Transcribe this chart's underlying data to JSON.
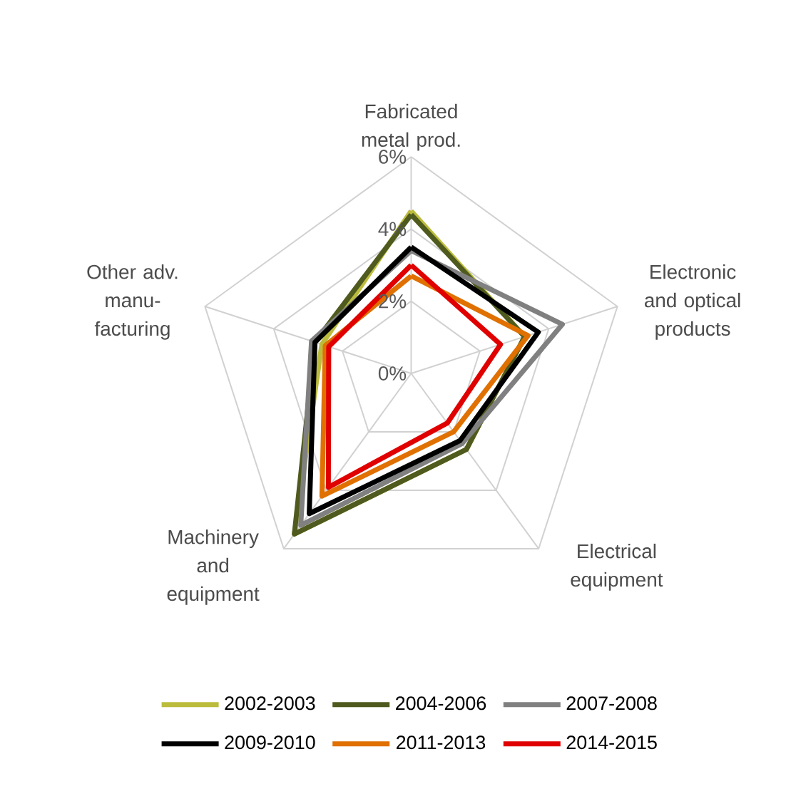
{
  "chart_data": {
    "type": "radar",
    "categories": [
      "Fabricated metal prod.",
      "Electronic and optical products",
      "Electrical equipment",
      "Machinery and equipment",
      "Other adv. manu-facturing"
    ],
    "ylim": [
      0,
      6
    ],
    "yticks": [
      {
        "value": 0,
        "label": "0%"
      },
      {
        "value": 2,
        "label": "2%"
      },
      {
        "value": 4,
        "label": "4%"
      },
      {
        "value": 6,
        "label": "6%"
      }
    ],
    "grid": true,
    "legend": "bottom",
    "series": [
      {
        "name": "2002-2003",
        "color": "#bcbc3c",
        "values": [
          4.5,
          3.3,
          2.6,
          5.5,
          2.6
        ]
      },
      {
        "name": "2004-2006",
        "color": "#4f5a1e",
        "values": [
          4.4,
          3.3,
          2.6,
          5.5,
          2.8
        ]
      },
      {
        "name": "2007-2008",
        "color": "#808080",
        "values": [
          3.4,
          4.4,
          2.4,
          5.2,
          2.9
        ]
      },
      {
        "name": "2009-2010",
        "color": "#000000",
        "values": [
          3.5,
          3.7,
          2.3,
          4.8,
          2.8
        ]
      },
      {
        "name": "2011-2013",
        "color": "#e07000",
        "values": [
          2.7,
          3.4,
          2.0,
          4.2,
          2.5
        ]
      },
      {
        "name": "2014-2015",
        "color": "#e00000",
        "values": [
          3.0,
          2.6,
          1.7,
          3.9,
          2.4
        ]
      }
    ]
  }
}
